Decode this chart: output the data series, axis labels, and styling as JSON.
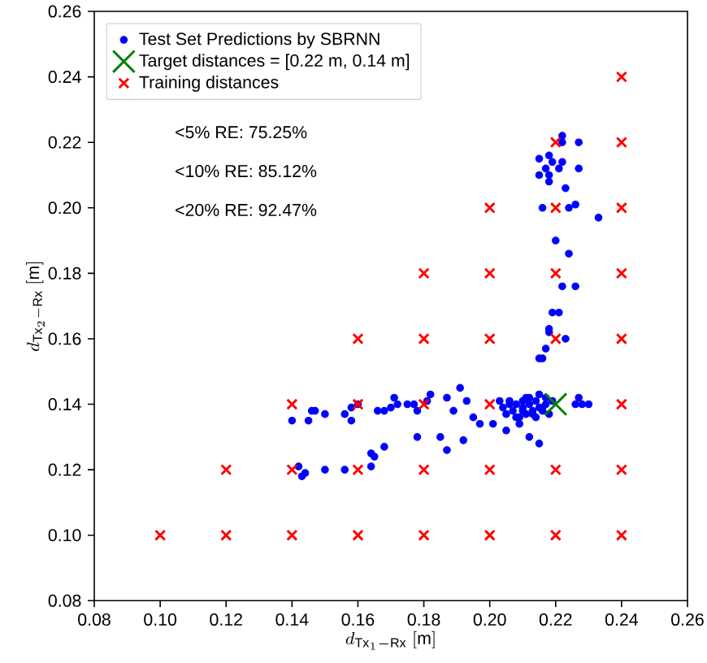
{
  "chart_data": {
    "type": "scatter",
    "xlabel": "d_{\\mathrm{Tx}_1-\\mathrm{Rx}}\\ [\\mathrm{m}]",
    "ylabel": "d_{\\mathrm{Tx}_2-\\mathrm{Rx}}\\ [\\mathrm{m}]",
    "xlim": [
      0.08,
      0.26
    ],
    "ylim": [
      0.08,
      0.26
    ],
    "xticks": [
      {
        "value": 0.08,
        "label": "0.08"
      },
      {
        "value": 0.1,
        "label": "0.10"
      },
      {
        "value": 0.12,
        "label": "0.12"
      },
      {
        "value": 0.14,
        "label": "0.14"
      },
      {
        "value": 0.16,
        "label": "0.16"
      },
      {
        "value": 0.18,
        "label": "0.18"
      },
      {
        "value": 0.2,
        "label": "0.20"
      },
      {
        "value": 0.22,
        "label": "0.22"
      },
      {
        "value": 0.24,
        "label": "0.24"
      },
      {
        "value": 0.26,
        "label": "0.26"
      }
    ],
    "yticks": [
      {
        "value": 0.08,
        "label": "0.08"
      },
      {
        "value": 0.1,
        "label": "0.10"
      },
      {
        "value": 0.12,
        "label": "0.12"
      },
      {
        "value": 0.14,
        "label": "0.14"
      },
      {
        "value": 0.16,
        "label": "0.16"
      },
      {
        "value": 0.18,
        "label": "0.18"
      },
      {
        "value": 0.2,
        "label": "0.20"
      },
      {
        "value": 0.22,
        "label": "0.22"
      },
      {
        "value": 0.24,
        "label": "0.24"
      },
      {
        "value": 0.26,
        "label": "0.26"
      }
    ],
    "legend": "top left",
    "grid": false,
    "annotations": [
      "<5% RE: 75.25%",
      "<10% RE: 85.12%",
      "<20% RE: 92.47%"
    ],
    "series": [
      {
        "name": "Test Set Predictions by SBRNN",
        "color": "#0000ff",
        "marker": "circle",
        "x": [
          0.222,
          0.222,
          0.227,
          0.215,
          0.218,
          0.219,
          0.222,
          0.217,
          0.221,
          0.227,
          0.215,
          0.218,
          0.218,
          0.223,
          0.216,
          0.224,
          0.226,
          0.233,
          0.22,
          0.224,
          0.226,
          0.222,
          0.219,
          0.221,
          0.218,
          0.218,
          0.223,
          0.217,
          0.215,
          0.216,
          0.14,
          0.145,
          0.146,
          0.147,
          0.15,
          0.156,
          0.158,
          0.158,
          0.16,
          0.166,
          0.168,
          0.17,
          0.171,
          0.172,
          0.175,
          0.177,
          0.178,
          0.181,
          0.182,
          0.187,
          0.189,
          0.191,
          0.193,
          0.195,
          0.197,
          0.201,
          0.203,
          0.205,
          0.209,
          0.212,
          0.215,
          0.226,
          0.227,
          0.228,
          0.23,
          0.142,
          0.143,
          0.144,
          0.15,
          0.156,
          0.164,
          0.164,
          0.165,
          0.168,
          0.178,
          0.185,
          0.187,
          0.192,
          0.204,
          0.205,
          0.206,
          0.207,
          0.208,
          0.209,
          0.21,
          0.21,
          0.211,
          0.212,
          0.212,
          0.213,
          0.214,
          0.214,
          0.215,
          0.215,
          0.216,
          0.217,
          0.217,
          0.218,
          0.219,
          0.206,
          0.208,
          0.21,
          0.213,
          0.216,
          0.211
        ],
        "values": [
          0.222,
          0.22,
          0.22,
          0.215,
          0.216,
          0.214,
          0.214,
          0.212,
          0.212,
          0.212,
          0.21,
          0.21,
          0.208,
          0.206,
          0.2,
          0.2,
          0.201,
          0.197,
          0.19,
          0.186,
          0.176,
          0.176,
          0.168,
          0.168,
          0.163,
          0.162,
          0.16,
          0.157,
          0.154,
          0.154,
          0.135,
          0.135,
          0.138,
          0.138,
          0.137,
          0.137,
          0.135,
          0.139,
          0.14,
          0.138,
          0.138,
          0.139,
          0.142,
          0.14,
          0.14,
          0.14,
          0.138,
          0.141,
          0.143,
          0.142,
          0.138,
          0.145,
          0.141,
          0.136,
          0.134,
          0.134,
          0.141,
          0.132,
          0.134,
          0.13,
          0.128,
          0.14,
          0.142,
          0.14,
          0.14,
          0.121,
          0.118,
          0.119,
          0.12,
          0.12,
          0.121,
          0.125,
          0.124,
          0.127,
          0.13,
          0.13,
          0.126,
          0.129,
          0.139,
          0.137,
          0.141,
          0.138,
          0.14,
          0.136,
          0.139,
          0.141,
          0.137,
          0.14,
          0.142,
          0.138,
          0.141,
          0.136,
          0.139,
          0.143,
          0.138,
          0.14,
          0.142,
          0.137,
          0.141,
          0.14,
          0.136,
          0.138,
          0.137,
          0.139,
          0.142
        ]
      },
      {
        "name": "Target distances = [0.22 m, 0.14 m]",
        "color": "#008000",
        "marker": "cross",
        "x": [
          0.22
        ],
        "values": [
          0.14
        ]
      },
      {
        "name": "Training distances",
        "color": "#ff0000",
        "marker": "cross",
        "x": [
          0.24,
          0.22,
          0.24,
          0.2,
          0.22,
          0.24,
          0.18,
          0.2,
          0.22,
          0.24,
          0.16,
          0.18,
          0.2,
          0.22,
          0.24,
          0.14,
          0.16,
          0.18,
          0.2,
          0.24,
          0.12,
          0.14,
          0.16,
          0.18,
          0.2,
          0.22,
          0.24,
          0.1,
          0.12,
          0.14,
          0.16,
          0.18,
          0.2,
          0.22,
          0.24
        ],
        "values": [
          0.24,
          0.22,
          0.22,
          0.2,
          0.2,
          0.2,
          0.18,
          0.18,
          0.18,
          0.18,
          0.16,
          0.16,
          0.16,
          0.16,
          0.16,
          0.14,
          0.14,
          0.14,
          0.14,
          0.14,
          0.12,
          0.12,
          0.12,
          0.12,
          0.12,
          0.12,
          0.12,
          0.1,
          0.1,
          0.1,
          0.1,
          0.1,
          0.1,
          0.1,
          0.1
        ]
      }
    ]
  }
}
